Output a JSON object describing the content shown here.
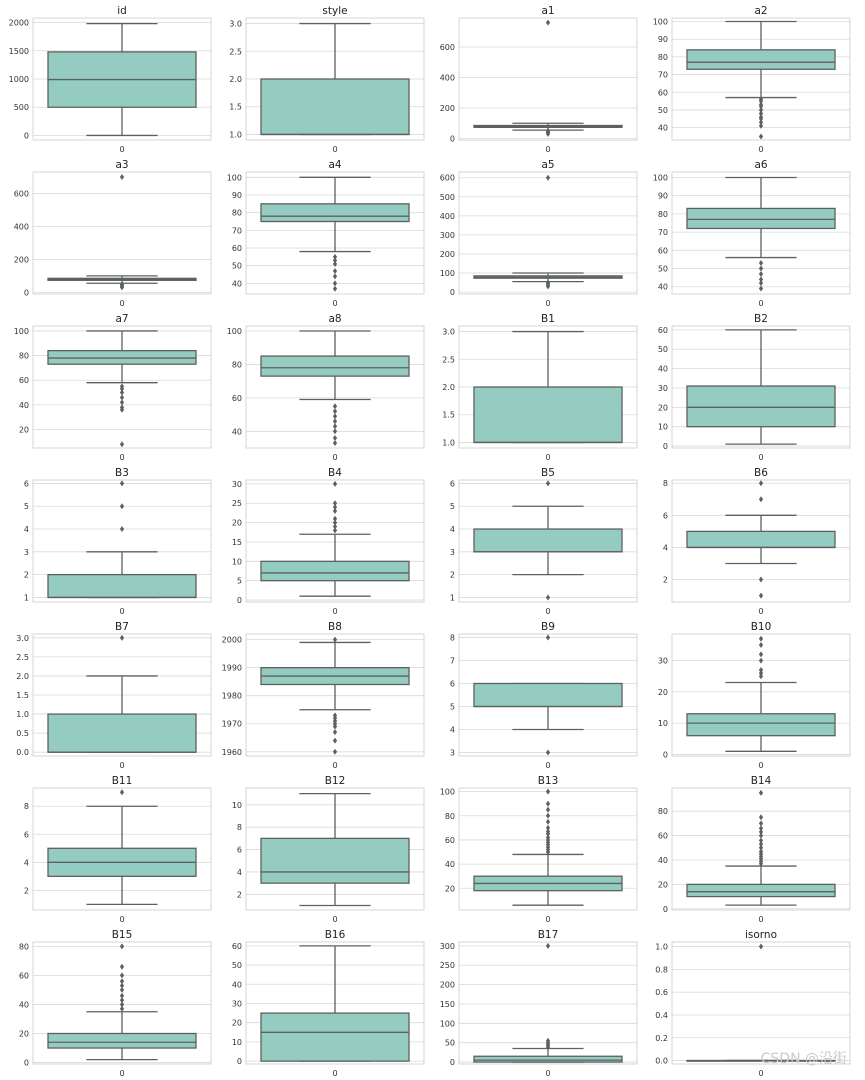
{
  "watermark": "CSDN @沿街",
  "colors": {
    "box_fill": "#95ccc1",
    "line": "#5d6060",
    "grid": "#d9d9d9",
    "frame": "#cccccc"
  },
  "chart_data": [
    {
      "type": "box",
      "title": "id",
      "xtick": "0",
      "ylim": [
        -80,
        2080
      ],
      "yticks": [
        "0",
        "500",
        "1000",
        "1500",
        "2000"
      ],
      "ytick_values": [
        0,
        500,
        1000,
        1500,
        2000
      ],
      "stats": {
        "min": 1,
        "q1": 500,
        "median": 990,
        "q3": 1480,
        "max": 1980
      },
      "outliers": []
    },
    {
      "type": "box",
      "title": "style",
      "xtick": "0",
      "ylim": [
        0.9,
        3.1
      ],
      "yticks": [
        "1.0",
        "1.5",
        "2.0",
        "2.5",
        "3.0"
      ],
      "ytick_values": [
        1,
        1.5,
        2,
        2.5,
        3
      ],
      "stats": {
        "min": 1,
        "q1": 1,
        "median": 1,
        "q3": 2,
        "max": 3
      },
      "outliers": []
    },
    {
      "type": "box",
      "title": "a1",
      "xtick": "0",
      "ylim": [
        -10,
        790
      ],
      "yticks": [
        "0",
        "200",
        "400",
        "600"
      ],
      "ytick_values": [
        0,
        200,
        400,
        600
      ],
      "stats": {
        "min": 55,
        "q1": 73,
        "median": 78,
        "q3": 85,
        "max": 100
      },
      "outliers": [
        30,
        38,
        44,
        50,
        760
      ]
    },
    {
      "type": "box",
      "title": "a2",
      "xtick": "0",
      "ylim": [
        33,
        102
      ],
      "yticks": [
        "40",
        "50",
        "60",
        "70",
        "80",
        "90",
        "100"
      ],
      "ytick_values": [
        40,
        50,
        60,
        70,
        80,
        90,
        100
      ],
      "stats": {
        "min": 57,
        "q1": 73,
        "median": 77,
        "q3": 84,
        "max": 100
      },
      "outliers": [
        35,
        41,
        43,
        45,
        46,
        48,
        50,
        52,
        53,
        55,
        56
      ]
    },
    {
      "type": "box",
      "title": "a3",
      "xtick": "0",
      "ylim": [
        -10,
        730
      ],
      "yticks": [
        "0",
        "200",
        "400",
        "600"
      ],
      "ytick_values": [
        0,
        200,
        400,
        600
      ],
      "stats": {
        "min": 55,
        "q1": 73,
        "median": 78,
        "q3": 85,
        "max": 100
      },
      "outliers": [
        30,
        38,
        45,
        50,
        700
      ]
    },
    {
      "type": "box",
      "title": "a4",
      "xtick": "0",
      "ylim": [
        34,
        103
      ],
      "yticks": [
        "40",
        "50",
        "60",
        "70",
        "80",
        "90",
        "100"
      ],
      "ytick_values": [
        40,
        50,
        60,
        70,
        80,
        90,
        100
      ],
      "stats": {
        "min": 58,
        "q1": 75,
        "median": 78,
        "q3": 85,
        "max": 100
      },
      "outliers": [
        37,
        40,
        44,
        47,
        51,
        53,
        55
      ]
    },
    {
      "type": "box",
      "title": "a5",
      "xtick": "0",
      "ylim": [
        -10,
        630
      ],
      "yticks": [
        "0",
        "100",
        "200",
        "300",
        "400",
        "500",
        "600"
      ],
      "ytick_values": [
        0,
        100,
        200,
        300,
        400,
        500,
        600
      ],
      "stats": {
        "min": 55,
        "q1": 73,
        "median": 78,
        "q3": 85,
        "max": 100
      },
      "outliers": [
        30,
        38,
        45,
        50,
        600
      ]
    },
    {
      "type": "box",
      "title": "a6",
      "xtick": "0",
      "ylim": [
        36,
        103
      ],
      "yticks": [
        "40",
        "50",
        "60",
        "70",
        "80",
        "90",
        "100"
      ],
      "ytick_values": [
        40,
        50,
        60,
        70,
        80,
        90,
        100
      ],
      "stats": {
        "min": 56,
        "q1": 72,
        "median": 77,
        "q3": 83,
        "max": 100
      },
      "outliers": [
        39,
        42,
        44,
        47,
        50,
        53
      ]
    },
    {
      "type": "box",
      "title": "a7",
      "xtick": "0",
      "ylim": [
        5,
        104
      ],
      "yticks": [
        "20",
        "40",
        "60",
        "80",
        "100"
      ],
      "ytick_values": [
        20,
        40,
        60,
        80,
        100
      ],
      "stats": {
        "min": 58,
        "q1": 73,
        "median": 78,
        "q3": 84,
        "max": 100
      },
      "outliers": [
        8,
        36,
        38,
        42,
        46,
        50,
        53,
        55
      ]
    },
    {
      "type": "box",
      "title": "a8",
      "xtick": "0",
      "ylim": [
        30,
        103
      ],
      "yticks": [
        "40",
        "60",
        "80",
        "100"
      ],
      "ytick_values": [
        40,
        60,
        80,
        100
      ],
      "stats": {
        "min": 59,
        "q1": 73,
        "median": 78,
        "q3": 85,
        "max": 100
      },
      "outliers": [
        33,
        36,
        40,
        43,
        46,
        49,
        52,
        55
      ]
    },
    {
      "type": "box",
      "title": "B1",
      "xtick": "0",
      "ylim": [
        0.9,
        3.1
      ],
      "yticks": [
        "1.0",
        "1.5",
        "2.0",
        "2.5",
        "3.0"
      ],
      "ytick_values": [
        1,
        1.5,
        2,
        2.5,
        3
      ],
      "stats": {
        "min": 1,
        "q1": 1,
        "median": 1,
        "q3": 2,
        "max": 3
      },
      "outliers": []
    },
    {
      "type": "box",
      "title": "B2",
      "xtick": "0",
      "ylim": [
        -1,
        62
      ],
      "yticks": [
        "0",
        "10",
        "20",
        "30",
        "40",
        "50",
        "60"
      ],
      "ytick_values": [
        0,
        10,
        20,
        30,
        40,
        50,
        60
      ],
      "stats": {
        "min": 1,
        "q1": 10,
        "median": 20,
        "q3": 31,
        "max": 60
      },
      "outliers": []
    },
    {
      "type": "box",
      "title": "B3",
      "xtick": "0",
      "ylim": [
        0.8,
        6.15
      ],
      "yticks": [
        "1",
        "2",
        "3",
        "4",
        "5",
        "6"
      ],
      "ytick_values": [
        1,
        2,
        3,
        4,
        5,
        6
      ],
      "stats": {
        "min": 1,
        "q1": 1,
        "median": 1,
        "q3": 2,
        "max": 3
      },
      "outliers": [
        4,
        5,
        6
      ]
    },
    {
      "type": "box",
      "title": "B4",
      "xtick": "0",
      "ylim": [
        -0.5,
        31
      ],
      "yticks": [
        "0",
        "5",
        "10",
        "15",
        "20",
        "25",
        "30"
      ],
      "ytick_values": [
        0,
        5,
        10,
        15,
        20,
        25,
        30
      ],
      "stats": {
        "min": 1,
        "q1": 5,
        "median": 7,
        "q3": 10,
        "max": 17
      },
      "outliers": [
        18,
        19,
        20,
        21,
        23,
        24,
        25,
        30
      ]
    },
    {
      "type": "box",
      "title": "B5",
      "xtick": "0",
      "ylim": [
        0.8,
        6.15
      ],
      "yticks": [
        "1",
        "2",
        "3",
        "4",
        "5",
        "6"
      ],
      "ytick_values": [
        1,
        2,
        3,
        4,
        5,
        6
      ],
      "stats": {
        "min": 2,
        "q1": 3,
        "median": 3,
        "q3": 4,
        "max": 5
      },
      "outliers": [
        1,
        6
      ]
    },
    {
      "type": "box",
      "title": "B6",
      "xtick": "0",
      "ylim": [
        0.6,
        8.2
      ],
      "yticks": [
        "2",
        "4",
        "6",
        "8"
      ],
      "ytick_values": [
        2,
        4,
        6,
        8
      ],
      "stats": {
        "min": 3,
        "q1": 4,
        "median": 4,
        "q3": 5,
        "max": 6
      },
      "outliers": [
        1,
        2,
        7,
        8
      ]
    },
    {
      "type": "box",
      "title": "B7",
      "xtick": "0",
      "ylim": [
        -0.1,
        3.1
      ],
      "yticks": [
        "0.0",
        "0.5",
        "1.0",
        "1.5",
        "2.0",
        "2.5",
        "3.0"
      ],
      "ytick_values": [
        0,
        0.5,
        1,
        1.5,
        2,
        2.5,
        3
      ],
      "stats": {
        "min": 0,
        "q1": 0,
        "median": 0,
        "q3": 1,
        "max": 2
      },
      "outliers": [
        3
      ]
    },
    {
      "type": "box",
      "title": "B8",
      "xtick": "0",
      "ylim": [
        1958.5,
        2002
      ],
      "yticks": [
        "1960",
        "1970",
        "1980",
        "1990",
        "2000"
      ],
      "ytick_values": [
        1960,
        1970,
        1980,
        1990,
        2000
      ],
      "stats": {
        "min": 1975,
        "q1": 1984,
        "median": 1987,
        "q3": 1990,
        "max": 1999
      },
      "outliers": [
        1960,
        1964,
        1967,
        1969,
        1970,
        1971,
        1972,
        1973,
        2000
      ]
    },
    {
      "type": "box",
      "title": "B9",
      "xtick": "0",
      "ylim": [
        2.85,
        8.15
      ],
      "yticks": [
        "3",
        "4",
        "5",
        "6",
        "7",
        "8"
      ],
      "ytick_values": [
        3,
        4,
        5,
        6,
        7,
        8
      ],
      "stats": {
        "min": 4,
        "q1": 5,
        "median": 5,
        "q3": 6,
        "max": 6
      },
      "outliers": [
        3,
        8
      ]
    },
    {
      "type": "box",
      "title": "B10",
      "xtick": "0",
      "ylim": [
        -0.5,
        38.5
      ],
      "yticks": [
        "0",
        "10",
        "20",
        "30"
      ],
      "ytick_values": [
        0,
        10,
        20,
        30
      ],
      "stats": {
        "min": 1,
        "q1": 6,
        "median": 10,
        "q3": 13,
        "max": 23
      },
      "outliers": [
        25,
        26,
        27,
        30,
        32,
        35,
        37
      ]
    },
    {
      "type": "box",
      "title": "B11",
      "xtick": "0",
      "ylim": [
        0.6,
        9.3
      ],
      "yticks": [
        "2",
        "4",
        "6",
        "8"
      ],
      "ytick_values": [
        2,
        4,
        6,
        8
      ],
      "stats": {
        "min": 1,
        "q1": 3,
        "median": 4,
        "q3": 5,
        "max": 8
      },
      "outliers": [
        9
      ]
    },
    {
      "type": "box",
      "title": "B12",
      "xtick": "0",
      "ylim": [
        0.6,
        11.5
      ],
      "yticks": [
        "2",
        "4",
        "6",
        "8",
        "10"
      ],
      "ytick_values": [
        2,
        4,
        6,
        8,
        10
      ],
      "stats": {
        "min": 1,
        "q1": 3,
        "median": 4,
        "q3": 7,
        "max": 11
      },
      "outliers": []
    },
    {
      "type": "box",
      "title": "B13",
      "xtick": "0",
      "ylim": [
        2,
        103
      ],
      "yticks": [
        "20",
        "40",
        "60",
        "80",
        "100"
      ],
      "ytick_values": [
        20,
        40,
        60,
        80,
        100
      ],
      "stats": {
        "min": 6,
        "q1": 18,
        "median": 24,
        "q3": 30,
        "max": 48
      },
      "outliers": [
        50,
        52,
        54,
        56,
        58,
        60,
        62,
        65,
        67,
        70,
        75,
        80,
        85,
        90,
        100
      ]
    },
    {
      "type": "box",
      "title": "B14",
      "xtick": "0",
      "ylim": [
        -1,
        99
      ],
      "yticks": [
        "0",
        "20",
        "40",
        "60",
        "80"
      ],
      "ytick_values": [
        0,
        20,
        40,
        60,
        80
      ],
      "stats": {
        "min": 3,
        "q1": 10,
        "median": 14,
        "q3": 20,
        "max": 35
      },
      "outliers": [
        37,
        39,
        41,
        43,
        45,
        47,
        50,
        53,
        56,
        60,
        63,
        66,
        70,
        75,
        95
      ]
    },
    {
      "type": "box",
      "title": "B15",
      "xtick": "0",
      "ylim": [
        -1,
        83
      ],
      "yticks": [
        "0",
        "20",
        "40",
        "60",
        "80"
      ],
      "ytick_values": [
        0,
        20,
        40,
        60,
        80
      ],
      "stats": {
        "min": 2,
        "q1": 10,
        "median": 14,
        "q3": 20,
        "max": 35
      },
      "outliers": [
        37,
        40,
        43,
        46,
        50,
        53,
        56,
        60,
        66,
        80
      ]
    },
    {
      "type": "box",
      "title": "B16",
      "xtick": "0",
      "ylim": [
        -1.5,
        62
      ],
      "yticks": [
        "0",
        "10",
        "20",
        "30",
        "40",
        "50",
        "60"
      ],
      "ytick_values": [
        0,
        10,
        20,
        30,
        40,
        50,
        60
      ],
      "stats": {
        "min": 0,
        "q1": 0,
        "median": 15,
        "q3": 25,
        "max": 60
      },
      "outliers": []
    },
    {
      "type": "box",
      "title": "B17",
      "xtick": "0",
      "ylim": [
        -5,
        310
      ],
      "yticks": [
        "0",
        "50",
        "100",
        "150",
        "200",
        "250",
        "300"
      ],
      "ytick_values": [
        0,
        50,
        100,
        150,
        200,
        250,
        300
      ],
      "stats": {
        "min": 0,
        "q1": 0,
        "median": 5,
        "q3": 15,
        "max": 35
      },
      "outliers": [
        38,
        42,
        46,
        50,
        55,
        300
      ]
    },
    {
      "type": "box",
      "title": "isorno",
      "xtick": "0",
      "ylim": [
        -0.03,
        1.04
      ],
      "yticks": [
        "0.0",
        "0.2",
        "0.4",
        "0.6",
        "0.8",
        "1.0"
      ],
      "ytick_values": [
        0,
        0.2,
        0.4,
        0.6,
        0.8,
        1
      ],
      "stats": {
        "min": 0,
        "q1": 0,
        "median": 0,
        "q3": 0,
        "max": 0
      },
      "outliers": [
        1
      ]
    }
  ]
}
